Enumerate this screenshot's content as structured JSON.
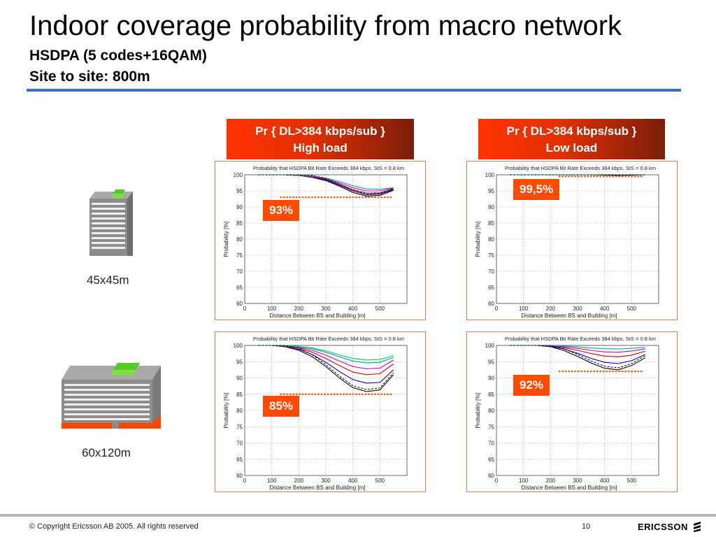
{
  "slide": {
    "title": "Indoor coverage probability from macro network",
    "subtitle1": "HSDPA (5 codes+16QAM)",
    "subtitle2": "Site to site: 800m"
  },
  "headers": [
    {
      "line1": "Pr { DL>384 kbps/sub }",
      "line2": "High load"
    },
    {
      "line1": "Pr { DL>384 kbps/sub }",
      "line2": "Low load"
    }
  ],
  "buildings": [
    {
      "label": "45x45m"
    },
    {
      "label": "60x120m"
    }
  ],
  "footer": {
    "copyright": "© Copyright Ericsson AB 2005. All rights reserved",
    "page": "10",
    "logo": "ERICSSON"
  },
  "colors": {
    "accent_orange": "#ff4a00",
    "rule_blue": "#3a6ccc",
    "building_green": "#66dd22",
    "building_orange": "#ff4400"
  },
  "chart_data": [
    {
      "type": "line",
      "title": "Probability that HSDPA Bit Rate Exceeds 384 kbps. StS = 0.8 km",
      "xlabel": "Distance Between BS and Building [m]",
      "ylabel": "Probability [%]",
      "xlim": [
        0,
        600
      ],
      "ylim": [
        60,
        100
      ],
      "xticks": [
        0,
        100,
        200,
        300,
        400,
        500
      ],
      "yticks": [
        60,
        65,
        70,
        75,
        80,
        85,
        90,
        95,
        100
      ],
      "grid": true,
      "callout": "93%",
      "threshold": 93,
      "x": [
        50,
        100,
        150,
        200,
        250,
        300,
        350,
        400,
        450,
        500,
        550
      ],
      "series": [
        {
          "color": "#000000",
          "values": [
            100,
            100,
            100,
            99.8,
            99.2,
            98.2,
            96.5,
            94.5,
            93.4,
            93.6,
            95.2
          ]
        },
        {
          "color": "#0000cc",
          "values": [
            100,
            100,
            100,
            99.8,
            99.3,
            98.4,
            96.8,
            95.0,
            93.8,
            94.0,
            95.4
          ]
        },
        {
          "color": "#cc0000",
          "values": [
            100,
            100,
            100,
            99.8,
            99.4,
            98.6,
            97.1,
            95.4,
            94.3,
            94.4,
            95.6
          ]
        },
        {
          "color": "#cc00cc",
          "values": [
            100,
            100,
            100,
            99.9,
            99.5,
            98.8,
            97.5,
            96.0,
            95.0,
            95.0,
            95.9
          ]
        },
        {
          "color": "#00aa99",
          "values": [
            100,
            100,
            100,
            99.9,
            99.6,
            99.0,
            97.9,
            96.6,
            95.6,
            95.5,
            96.0
          ]
        }
      ]
    },
    {
      "type": "line",
      "title": "Probability that HSDPA Bit Rate Exceeds 384 kbps. StS = 0.8 km",
      "xlabel": "Distance Between BS and Building [m]",
      "ylabel": "Probability [%]",
      "xlim": [
        0,
        600
      ],
      "ylim": [
        60,
        100
      ],
      "xticks": [
        0,
        100,
        200,
        300,
        400,
        500
      ],
      "yticks": [
        60,
        65,
        70,
        75,
        80,
        85,
        90,
        95,
        100
      ],
      "grid": true,
      "callout": "99,5%",
      "threshold": 99.5,
      "x": [
        50,
        100,
        150,
        200,
        250,
        300,
        350,
        400,
        450,
        500,
        550
      ],
      "series": [
        {
          "color": "#000000",
          "values": [
            100,
            100,
            100,
            100,
            100,
            100,
            100,
            99.9,
            99.8,
            99.9,
            100
          ]
        },
        {
          "color": "#0000cc",
          "values": [
            100,
            100,
            100,
            100,
            100,
            100,
            100,
            100,
            99.9,
            100,
            100
          ]
        },
        {
          "color": "#00aa99",
          "values": [
            100,
            100,
            100,
            100,
            100,
            100,
            100,
            100,
            100,
            100,
            100
          ]
        }
      ]
    },
    {
      "type": "line",
      "title": "Probability that HSDPA Bit Rate Exceeds 384 kbps. StS = 0.8 km",
      "xlabel": "Distance Between BS and Building [m]",
      "ylabel": "Probability [%]",
      "xlim": [
        0,
        600
      ],
      "ylim": [
        60,
        100
      ],
      "xticks": [
        0,
        100,
        200,
        300,
        400,
        500
      ],
      "yticks": [
        60,
        65,
        70,
        75,
        80,
        85,
        90,
        95,
        100
      ],
      "grid": true,
      "callout": "85%",
      "threshold": 85,
      "x": [
        50,
        100,
        150,
        200,
        250,
        300,
        350,
        400,
        450,
        500,
        550
      ],
      "series": [
        {
          "color": "#000000",
          "values": [
            100,
            100,
            99.6,
            98.5,
            96.5,
            93.5,
            90.0,
            87.0,
            85.8,
            86.3,
            91.0
          ]
        },
        {
          "color": "#0000cc",
          "values": [
            100,
            100,
            99.7,
            98.8,
            97.2,
            94.8,
            92.0,
            89.5,
            88.4,
            88.6,
            92.5
          ]
        },
        {
          "color": "#cc0000",
          "values": [
            100,
            100,
            99.8,
            99.2,
            97.9,
            96.0,
            93.8,
            91.8,
            91.0,
            91.3,
            94.3
          ]
        },
        {
          "color": "#cc00cc",
          "values": [
            100,
            100,
            99.9,
            99.4,
            98.5,
            97.0,
            95.2,
            93.5,
            92.8,
            93.0,
            95.5
          ]
        },
        {
          "color": "#00aa99",
          "values": [
            100,
            100,
            99.9,
            99.6,
            99.0,
            97.9,
            96.5,
            95.2,
            94.6,
            94.8,
            96.3
          ]
        },
        {
          "color": "#00cc44",
          "values": [
            100,
            100,
            100,
            99.7,
            99.2,
            98.3,
            97.1,
            96.0,
            95.5,
            95.7,
            96.8
          ]
        }
      ]
    },
    {
      "type": "line",
      "title": "Probability that HSDPA Bit Rate Exceeds 384 kbps. StS = 0.8 km",
      "xlabel": "Distance Between BS and Building [m]",
      "ylabel": "Probability [%]",
      "xlim": [
        0,
        600
      ],
      "ylim": [
        60,
        100
      ],
      "xticks": [
        0,
        100,
        200,
        300,
        400,
        500
      ],
      "yticks": [
        60,
        65,
        70,
        75,
        80,
        85,
        90,
        95,
        100
      ],
      "grid": true,
      "callout": "92%",
      "threshold": 92,
      "x": [
        50,
        100,
        150,
        200,
        250,
        300,
        350,
        400,
        450,
        500,
        550
      ],
      "series": [
        {
          "color": "#000000",
          "values": [
            100,
            100,
            100,
            99.6,
            98.4,
            96.6,
            94.6,
            93.0,
            92.5,
            93.8,
            96.2
          ]
        },
        {
          "color": "#0000cc",
          "values": [
            100,
            100,
            100,
            99.7,
            98.9,
            97.6,
            96.0,
            94.8,
            94.4,
            95.3,
            97.2
          ]
        },
        {
          "color": "#cc0000",
          "values": [
            100,
            100,
            100,
            99.8,
            99.3,
            98.5,
            97.5,
            96.7,
            96.5,
            97.0,
            98.2
          ]
        },
        {
          "color": "#cc00cc",
          "values": [
            100,
            100,
            100,
            99.9,
            99.6,
            99.1,
            98.5,
            98.0,
            97.9,
            98.3,
            98.9
          ]
        },
        {
          "color": "#00aa99",
          "values": [
            100,
            100,
            100,
            100,
            99.8,
            99.6,
            99.2,
            99.0,
            98.9,
            99.1,
            99.4
          ]
        }
      ]
    }
  ]
}
